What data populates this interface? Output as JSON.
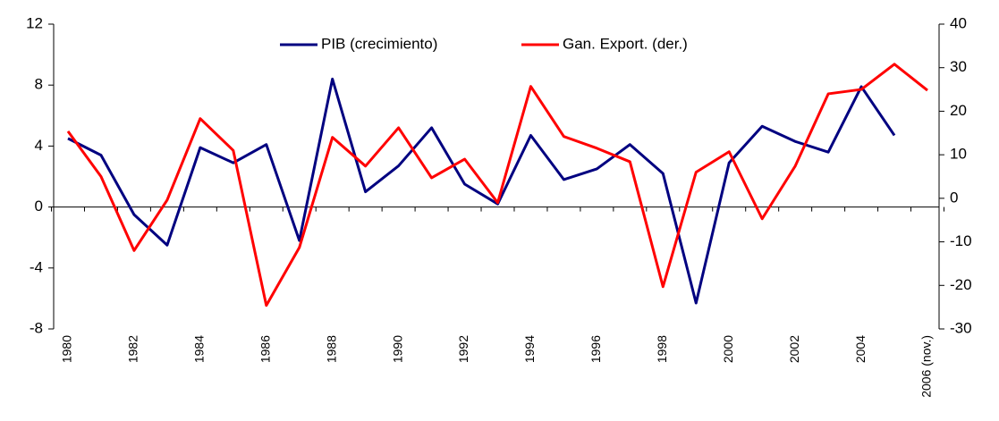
{
  "chart_data": {
    "type": "line",
    "categories": [
      "1980",
      null,
      "1982",
      null,
      "1984",
      null,
      "1986",
      null,
      "1988",
      null,
      "1990",
      null,
      "1992",
      null,
      "1994",
      null,
      "1996",
      null,
      "1998",
      null,
      "2000",
      null,
      "2002",
      null,
      "2004",
      null,
      "2006 (nov.)"
    ],
    "series": [
      {
        "name": "PIB (crecimiento)",
        "color": "#000080",
        "axis": "y",
        "values": [
          4.5,
          3.4,
          -0.5,
          -2.5,
          3.9,
          2.9,
          4.1,
          -2.2,
          8.4,
          1.0,
          2.7,
          5.2,
          1.5,
          0.2,
          4.7,
          1.8,
          2.5,
          4.1,
          2.2,
          -6.3,
          2.9,
          5.3,
          4.3,
          3.6,
          7.9,
          4.7,
          null
        ]
      },
      {
        "name": "Gan. Export. (der.)",
        "color": "#ff0000",
        "axis": "y2",
        "values": [
          15.4,
          5,
          -12,
          -0.4,
          18.3,
          11,
          -24.6,
          -11.3,
          14,
          7.4,
          16.2,
          4.7,
          9,
          -1,
          25.7,
          14.2,
          11.5,
          8.4,
          -20.3,
          6,
          10.7,
          -4.7,
          7.4,
          24,
          25,
          30.8,
          24.8
        ]
      }
    ],
    "ylim": [
      -8,
      12
    ],
    "yticks": [
      -8,
      -4,
      0,
      4,
      8,
      12
    ],
    "y2lim": [
      -30,
      40
    ],
    "y2ticks": [
      -30,
      -20,
      -10,
      0,
      10,
      20,
      30,
      40
    ],
    "legend": "top"
  }
}
